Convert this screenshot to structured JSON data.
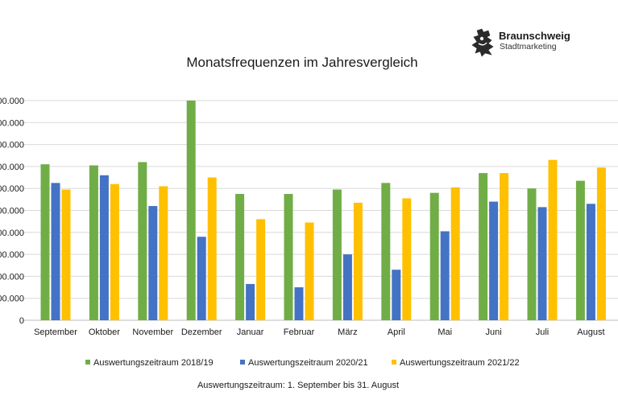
{
  "branding": {
    "name": "Braunschweig",
    "subtitle": "Stadtmarketing",
    "logo_icon": "braunschweig-lion-icon"
  },
  "chart_data": {
    "type": "bar",
    "title": "Monatsfrequenzen im Jahresvergleich",
    "categories": [
      "September",
      "Oktober",
      "November",
      "Dezember",
      "Januar",
      "Februar",
      "März",
      "April",
      "Mai",
      "Juni",
      "Juli",
      "August"
    ],
    "y_tick_labels": [
      "0",
      "100.000",
      "200.000",
      "300.000",
      "400.000",
      "500.000",
      "600.000",
      "700.000",
      "800.000",
      "900.000",
      "1.000.000"
    ],
    "ylim": [
      0,
      1000000
    ],
    "grid": true,
    "legend_position": "bottom",
    "series": [
      {
        "name": "Auswertungszeitraum 2018/19",
        "color": "#70ad47",
        "values": [
          710000,
          705000,
          720000,
          1000000,
          575000,
          575000,
          595000,
          625000,
          580000,
          670000,
          600000,
          635000
        ]
      },
      {
        "name": "Auswertungszeitraum 2020/21",
        "color": "#4472c4",
        "values": [
          625000,
          660000,
          520000,
          380000,
          165000,
          150000,
          300000,
          230000,
          405000,
          540000,
          515000,
          530000
        ]
      },
      {
        "name": "Auswertungszeitraum 2021/22",
        "color": "#ffc000",
        "values": [
          595000,
          620000,
          610000,
          650000,
          460000,
          445000,
          535000,
          555000,
          605000,
          670000,
          730000,
          695000
        ]
      }
    ],
    "footnote": "Auswertungszeitraum:  1. September bis 31. August"
  }
}
